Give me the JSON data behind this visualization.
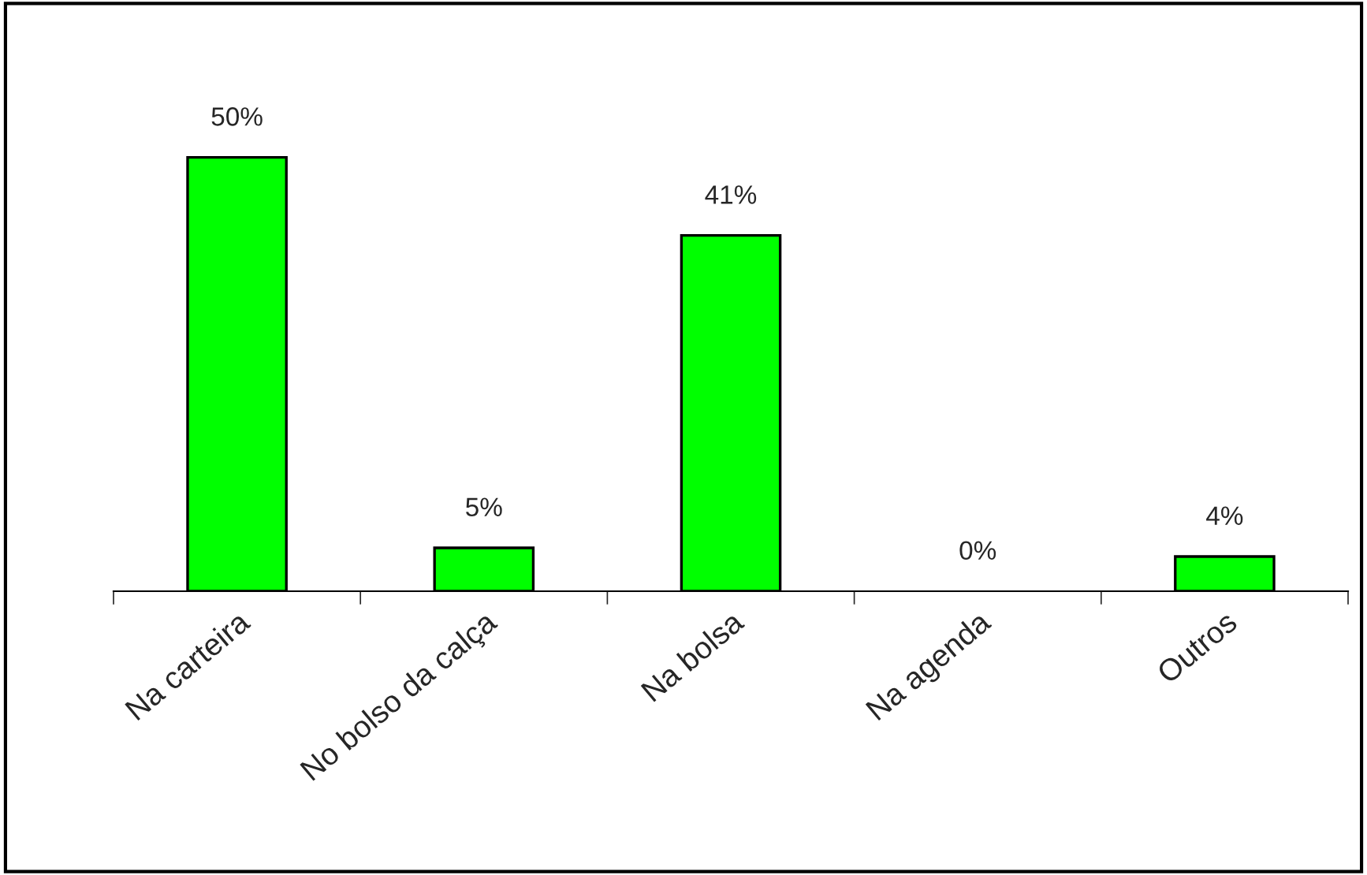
{
  "chart_data": {
    "type": "bar",
    "categories": [
      "Na carteira",
      "No bolso da calça",
      "Na bolsa",
      "Na agenda",
      "Outros"
    ],
    "values": [
      50,
      5,
      41,
      0,
      4
    ],
    "value_labels": [
      "50%",
      "5%",
      "41%",
      "0%",
      "4%"
    ],
    "color": "#00ff00",
    "grid": false,
    "legend": false
  }
}
